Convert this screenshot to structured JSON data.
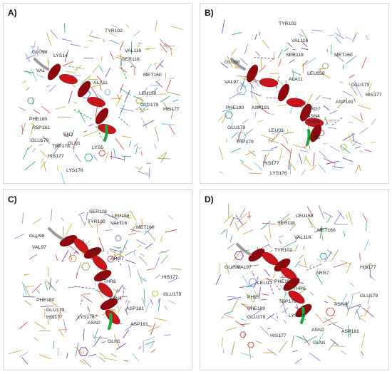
{
  "panels": [
    {
      "id": "A",
      "label": "A)",
      "residues": [
        "TYR102",
        "GLU98",
        "LYS14",
        "VAL116",
        "SER118",
        "VAL",
        "MET160",
        "ALA11",
        "LEU158",
        "PHE180",
        "GLU179",
        "ASP181",
        "HIS177",
        "GLU179",
        "TRP178",
        "SN2",
        "GLN1",
        "LYS5",
        "HIS177",
        "LYS176"
      ]
    },
    {
      "id": "B",
      "label": "B)",
      "residues": [
        "TYR102",
        "VAL116",
        "SER118",
        "MET160",
        "GLU98",
        "LEU158",
        "VAL97",
        "ALA11",
        "GLU179",
        "ASP181",
        "HIS177",
        "PHE180",
        "ASP181",
        "ARG7",
        "ASN4",
        "GLU179",
        "LEU03",
        "THR6",
        "LYS5",
        "TRP178",
        "HIS177",
        "LYS176"
      ]
    },
    {
      "id": "C",
      "label": "C)",
      "residues": [
        "SER118",
        "LEU158",
        "TYR102",
        "VAL116",
        "MET160",
        "GLU98",
        "VAL97",
        "ALA11",
        "ARG7",
        "HIS177",
        "THR6",
        "GLU179",
        "PHE180",
        "ASN4",
        "GLU179",
        "ASP181",
        "HIS177",
        "LYS176",
        "ASN2",
        "ASP181",
        "GLN1"
      ]
    },
    {
      "id": "D",
      "label": "D)",
      "residues": [
        "LEU158",
        "SER118",
        "VAL116",
        "MET160",
        "TYR102",
        "GLU98",
        "VAL97",
        "ARG7",
        "HIS177",
        "LEU13",
        "PHE10",
        "THR6",
        "GLU179",
        "PHE5",
        "ASN4",
        "TRP178",
        "LYS176",
        "PHE180",
        "GLU179",
        "ASN2",
        "ASP181",
        "HIS177",
        "GLN1"
      ]
    }
  ],
  "colors": {
    "helix": "#c8151b",
    "helix_dark": "#8c0a0e",
    "coil_grey": "#9a9a9a",
    "coil_green": "#1fa83a",
    "hbond": "#2fb33c",
    "stick_palette": [
      "#7b7fd6",
      "#7ab8e0",
      "#b6b83a",
      "#e0932a",
      "#7a3aa0",
      "#d04040",
      "#2aa0a0",
      "#8aa05a"
    ]
  }
}
